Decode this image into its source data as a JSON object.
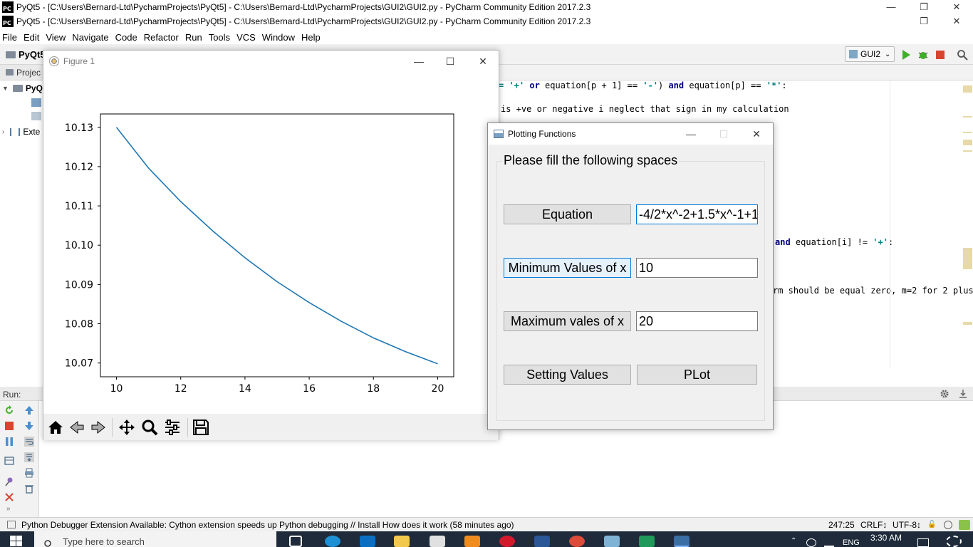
{
  "window_titles": [
    "PyQt5 - [C:\\Users\\Bernard-Ltd\\PycharmProjects\\PyQt5] - C:\\Users\\Bernard-Ltd\\PycharmProjects\\GUI2\\GUI2.py - PyCharm Community Edition 2017.2.3",
    "PyQt5 - [C:\\Users\\Bernard-Ltd\\PycharmProjects\\PyQt5] - C:\\Users\\Bernard-Ltd\\PycharmProjects\\GUI2\\GUI2.py - PyCharm Community Edition 2017.2.3"
  ],
  "app_logo": "PC",
  "menu": [
    "File",
    "Edit",
    "View",
    "Navigate",
    "Code",
    "Refactor",
    "Run",
    "Tools",
    "VCS",
    "Window",
    "Help"
  ],
  "breadcrumb": "PyQt5",
  "run_config": "GUI2",
  "project_panel": {
    "header": "Projec",
    "root": "PyQ",
    "external": "Exte"
  },
  "editor": {
    "line1_a": "= '+' or equation[p + 1] == '-') and equation[p] == '*':",
    "line2": "is +ve or negative i neglect that sign in my calculation",
    "line3": "and equation[i] != '+':",
    "line4": "rm should be equal zero, m=2 for 2 plus"
  },
  "run_panel": {
    "label": "Run:"
  },
  "status": {
    "message": "Python Debugger Extension Available: Cython extension speeds up Python debugging // Install How does it work (58 minutes ago)",
    "position": "247:25",
    "line_sep": "CRLF↕",
    "encoding": "UTF-8↕"
  },
  "taskbar": {
    "search_placeholder": "Type here to search",
    "lang": "ENG",
    "time": "3:30 AM"
  },
  "figure": {
    "title": "Figure 1",
    "toolbar": [
      "home-icon",
      "back-icon",
      "forward-icon",
      "pan-icon",
      "zoom-icon",
      "configure-icon",
      "save-icon"
    ]
  },
  "chart_data": {
    "type": "line",
    "x": [
      10,
      11,
      12,
      13,
      14,
      15,
      16,
      17,
      18,
      19,
      20
    ],
    "y": [
      10.13,
      10.1196,
      10.1111,
      10.1036,
      10.0968,
      10.0907,
      10.0854,
      10.0806,
      10.0764,
      10.0729,
      10.0698
    ],
    "xlim": [
      9.5,
      20.5
    ],
    "ylim": [
      10.0665,
      10.1334
    ],
    "xticks": [
      10,
      12,
      14,
      16,
      18,
      20
    ],
    "yticks": [
      "10.07",
      "10.08",
      "10.09",
      "10.10",
      "10.11",
      "10.12",
      "10.13"
    ],
    "yticks_values": [
      10.07,
      10.08,
      10.09,
      10.1,
      10.11,
      10.12,
      10.13
    ],
    "line_color": "#1f77b4",
    "grid": false,
    "title": "",
    "xlabel": "",
    "ylabel": ""
  },
  "dialog": {
    "title": "Plotting Functions",
    "group_title": "Please fill the following spaces",
    "rows": [
      {
        "label": "Equation",
        "value": "-4/2*x^-2+1.5*x^-1+1"
      },
      {
        "label": "Minimum Values of x",
        "value": "10"
      },
      {
        "label": "Maximum vales of x",
        "value": "20"
      }
    ],
    "setting_button": "Setting Values",
    "plot_button": "PLot"
  }
}
